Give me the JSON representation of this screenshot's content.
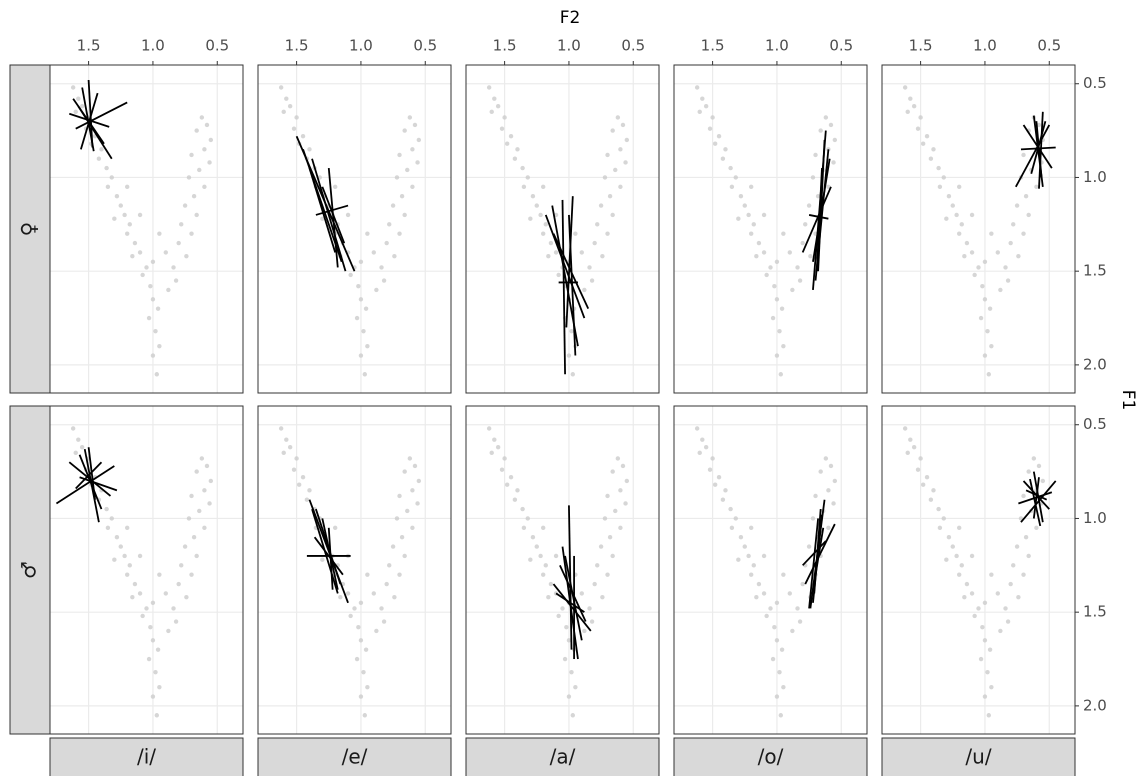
{
  "chart_data": {
    "type": "facet-segments",
    "x_label": "F2",
    "y_label": "F1",
    "xlim": [
      1.8,
      0.3
    ],
    "xticks": [
      1.5,
      {
        "value": 1,
        "label": "1.0"
      },
      0.5
    ],
    "ylim": [
      0.4,
      2.15
    ],
    "yticks": [
      0.5,
      {
        "value": 1,
        "label": "1.0"
      },
      1.5,
      {
        "value": 2,
        "label": "2.0"
      }
    ],
    "grid": true,
    "rows": [
      "♀",
      "♂"
    ],
    "columns": [
      "/i/",
      "/e/",
      "/a/",
      "/o/",
      "/u/"
    ],
    "background": {
      "color": "#cccccc",
      "x": [
        1.62,
        1.58,
        1.55,
        1.6,
        1.5,
        1.52,
        1.45,
        1.48,
        1.4,
        1.42,
        1.36,
        1.32,
        1.35,
        1.28,
        1.25,
        1.22,
        1.3,
        1.18,
        1.2,
        1.14,
        1.1,
        1.16,
        1.05,
        1.08,
        1.02,
        1.0,
        0.96,
        1.03,
        0.98,
        0.95,
        1.0,
        0.97,
        0.62,
        0.58,
        0.66,
        0.55,
        0.6,
        0.7,
        0.56,
        0.64,
        0.72,
        0.6,
        0.68,
        0.75,
        0.66,
        0.78,
        0.7,
        0.8,
        0.74,
        0.84,
        0.82,
        0.88,
        1.1,
        0.95,
        1.0,
        0.9,
        1.2
      ],
      "y": [
        0.52,
        0.58,
        0.62,
        0.65,
        0.68,
        0.74,
        0.78,
        0.82,
        0.85,
        0.9,
        0.95,
        1.0,
        1.05,
        1.1,
        1.15,
        1.2,
        1.22,
        1.25,
        1.3,
        1.35,
        1.4,
        1.42,
        1.48,
        1.52,
        1.58,
        1.65,
        1.7,
        1.75,
        1.82,
        1.9,
        1.95,
        2.05,
        0.68,
        0.72,
        0.75,
        0.8,
        0.85,
        0.88,
        0.92,
        0.96,
        1.0,
        1.05,
        1.1,
        1.15,
        1.2,
        1.25,
        1.3,
        1.35,
        1.42,
        1.48,
        1.55,
        1.6,
        1.2,
        1.3,
        1.45,
        1.4,
        1.05
      ]
    },
    "segment_color": "#000000",
    "panels": [
      [
        {
          "x1": [
            1.62,
            1.55,
            1.5,
            1.65,
            1.58,
            1.2,
            1.43
          ],
          "y1": [
            0.58,
            0.52,
            0.48,
            0.66,
            0.62,
            0.6,
            0.55
          ],
          "x2": [
            1.38,
            1.46,
            1.47,
            1.34,
            1.32,
            1.6,
            1.56
          ],
          "y2": [
            0.82,
            0.86,
            0.84,
            0.73,
            0.9,
            0.74,
            0.85
          ]
        },
        {
          "x1": [
            1.5,
            1.45,
            1.38,
            1.4,
            1.3,
            1.35,
            1.25
          ],
          "y1": [
            0.78,
            0.85,
            0.9,
            0.95,
            1.05,
            1.2,
            0.95
          ],
          "x2": [
            1.05,
            1.15,
            1.12,
            1.2,
            1.13,
            1.1,
            1.18
          ],
          "y2": [
            1.5,
            1.45,
            1.5,
            1.4,
            1.35,
            1.15,
            1.48
          ]
        },
        {
          "x1": [
            1.13,
            1.05,
            1.18,
            1.0,
            0.97,
            1.08,
            1.12
          ],
          "y1": [
            1.15,
            1.12,
            1.2,
            1.2,
            1.1,
            1.56,
            1.3
          ],
          "x2": [
            0.93,
            1.03,
            0.88,
            0.95,
            1.02,
            0.93,
            0.85
          ],
          "y2": [
            1.9,
            2.05,
            1.75,
            1.95,
            1.8,
            1.56,
            1.7
          ]
        },
        {
          "x1": [
            0.62,
            0.6,
            0.63,
            0.59,
            0.8,
            0.75,
            0.65
          ],
          "y1": [
            0.75,
            0.85,
            0.8,
            0.9,
            1.4,
            1.2,
            0.95
          ],
          "x2": [
            0.72,
            0.7,
            0.68,
            0.72,
            0.58,
            0.6,
            0.69
          ],
          "y2": [
            1.6,
            1.55,
            1.5,
            1.45,
            1.05,
            1.22,
            1.5
          ]
        },
        {
          "x1": [
            0.62,
            0.7,
            0.76,
            0.72,
            0.6,
            0.53,
            0.55
          ],
          "y1": [
            0.67,
            0.72,
            1.05,
            0.85,
            0.7,
            0.7,
            0.65
          ],
          "x2": [
            0.55,
            0.48,
            0.5,
            0.45,
            0.56,
            0.64,
            0.58
          ],
          "y2": [
            1.05,
            0.95,
            0.72,
            0.84,
            1.0,
            0.98,
            1.06
          ]
        }
      ],
      [
        {
          "x1": [
            1.57,
            1.53,
            1.65,
            1.75,
            1.5,
            1.57,
            1.6
          ],
          "y1": [
            0.66,
            0.63,
            0.7,
            0.92,
            0.62,
            0.78,
            0.84
          ],
          "x2": [
            1.4,
            1.42,
            1.33,
            1.3,
            1.45,
            1.28,
            1.4
          ],
          "y2": [
            0.95,
            1.02,
            0.88,
            0.72,
            0.9,
            0.85,
            0.7
          ]
        },
        {
          "x1": [
            1.4,
            1.38,
            1.35,
            1.3,
            1.42,
            1.36,
            1.25
          ],
          "y1": [
            0.9,
            0.95,
            0.95,
            1.0,
            1.2,
            1.1,
            1.05
          ],
          "x2": [
            1.1,
            1.18,
            1.16,
            1.18,
            1.08,
            1.14,
            1.22
          ],
          "y2": [
            1.45,
            1.4,
            1.35,
            1.38,
            1.2,
            1.3,
            1.38
          ]
        },
        {
          "x1": [
            1.0,
            1.05,
            1.12,
            1.03,
            1.1,
            0.96,
            1.07
          ],
          "y1": [
            0.93,
            1.15,
            1.35,
            1.2,
            1.4,
            1.2,
            1.25
          ],
          "x2": [
            0.98,
            0.93,
            0.83,
            0.9,
            0.88,
            0.96,
            0.87
          ],
          "y2": [
            1.7,
            1.75,
            1.6,
            1.65,
            1.5,
            1.75,
            1.55
          ]
        },
        {
          "x1": [
            0.63,
            0.65,
            0.55,
            0.66,
            0.8,
            0.68,
            0.64
          ],
          "y1": [
            0.9,
            0.98,
            1.03,
            0.95,
            1.25,
            1.0,
            1.05
          ],
          "x2": [
            0.74,
            0.72,
            0.78,
            0.71,
            0.62,
            0.75,
            0.7
          ],
          "y2": [
            1.48,
            1.45,
            1.35,
            1.4,
            1.12,
            1.48,
            1.3
          ]
        },
        {
          "x1": [
            0.72,
            0.7,
            0.62,
            0.68,
            0.74,
            0.58,
            0.65
          ],
          "y1": [
            1.02,
            0.8,
            0.75,
            0.85,
            0.92,
            0.78,
            0.79
          ],
          "x2": [
            0.45,
            0.5,
            0.55,
            0.52,
            0.48,
            0.62,
            0.57
          ],
          "y2": [
            0.8,
            0.95,
            1.02,
            0.9,
            0.86,
            1.0,
            1.04
          ]
        }
      ]
    ]
  }
}
